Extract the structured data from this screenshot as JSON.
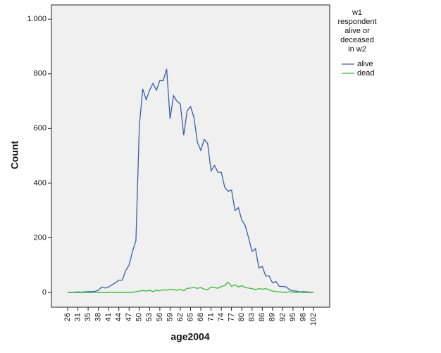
{
  "chart_data": {
    "type": "line",
    "x_label": "age2004",
    "y_label": "Count",
    "legend_title": [
      "w1",
      "respondent",
      "alive or",
      "deceased",
      "in w2"
    ],
    "legend": "right",
    "categories": [
      "26",
      null,
      null,
      "31",
      null,
      null,
      "35",
      null,
      null,
      "38",
      null,
      null,
      "41",
      null,
      null,
      "44",
      null,
      null,
      "47",
      null,
      null,
      "50",
      null,
      null,
      "53",
      null,
      null,
      "56",
      null,
      null,
      "59",
      null,
      null,
      "62",
      null,
      null,
      "65",
      null,
      null,
      "68",
      null,
      null,
      "71",
      null,
      null,
      "74",
      null,
      null,
      "77",
      null,
      null,
      "80",
      null,
      null,
      "83",
      null,
      null,
      "86",
      null,
      null,
      "89",
      null,
      null,
      "92",
      null,
      null,
      "95",
      null,
      null,
      "98",
      null,
      null,
      "102"
    ],
    "series": [
      {
        "name": "alive",
        "color": "#3d5da6",
        "values": [
          0,
          0,
          1,
          2,
          1,
          2,
          3,
          3,
          4,
          8,
          20,
          16,
          20,
          28,
          35,
          45,
          45,
          80,
          100,
          150,
          190,
          610,
          745,
          705,
          740,
          765,
          740,
          775,
          775,
          818,
          635,
          720,
          700,
          690,
          575,
          665,
          680,
          640,
          550,
          520,
          560,
          545,
          445,
          465,
          440,
          440,
          385,
          370,
          375,
          300,
          310,
          265,
          245,
          200,
          150,
          160,
          90,
          95,
          60,
          60,
          35,
          40,
          22,
          22,
          20,
          10,
          6,
          5,
          2,
          3,
          2,
          1,
          1
        ]
      },
      {
        "name": "dead",
        "color": "#3cb83c",
        "values": [
          0,
          0,
          0,
          0,
          0,
          0,
          0,
          0,
          0,
          0,
          0,
          0,
          0,
          0,
          0,
          0,
          0,
          0,
          0,
          0,
          3,
          5,
          7,
          5,
          8,
          3,
          8,
          6,
          10,
          8,
          12,
          10,
          8,
          12,
          6,
          15,
          16,
          18,
          15,
          18,
          12,
          10,
          20,
          18,
          15,
          22,
          25,
          38,
          22,
          28,
          20,
          25,
          18,
          16,
          14,
          10,
          14,
          12,
          14,
          10,
          5,
          3,
          2,
          1,
          0,
          3,
          1,
          0,
          1,
          0,
          0,
          0,
          0
        ]
      }
    ],
    "ylim": [
      -54,
      1052
    ],
    "yticks": [
      0,
      200,
      400,
      600,
      800,
      {
        "value": 1000,
        "label": "1.000"
      }
    ],
    "grid": false
  }
}
